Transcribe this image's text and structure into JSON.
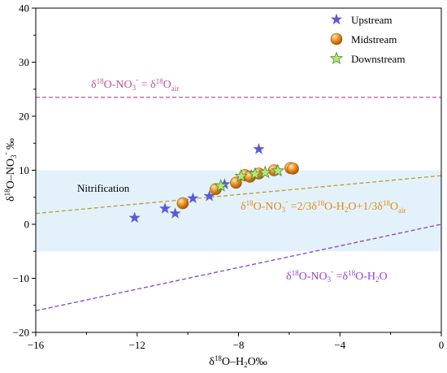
{
  "chart_data": {
    "type": "scatter",
    "xlim": [
      -16,
      0
    ],
    "ylim": [
      -20,
      40
    ],
    "x_ticks": [
      -16,
      -12,
      -8,
      -4,
      0
    ],
    "x_tick_labels": [
      "−16",
      "−12",
      "−8",
      "−4",
      "0"
    ],
    "y_ticks": [
      -20,
      -10,
      0,
      10,
      20,
      30,
      40
    ],
    "y_tick_labels": [
      "−20",
      "−10",
      "0",
      "10",
      "20",
      "30",
      "40"
    ],
    "xlabel": "δ¹⁸O–H₂O‰",
    "ylabel": "δ¹⁸O–NO₃⁻ ‰",
    "legend_position": "top-right",
    "nitrification_band": {
      "y_min": -5,
      "y_max": 10,
      "label": "Nitrification",
      "color": "#e3f2fa"
    },
    "reference_lines": [
      {
        "id": "air",
        "label": "δ18O-NO3- = δ18Oair",
        "color": "#c2509a",
        "y": 23.5
      },
      {
        "id": "two-thirds",
        "label": "δ18O-NO3- =2/3δ18O-H2O+1/3δ18Oair",
        "color": "#c09a30",
        "slope": 0.4375,
        "intercept": 9.0
      },
      {
        "id": "equal",
        "label": "δ18O-NO3- =δ18O-H2O",
        "color": "#8a3fd0",
        "slope": 1,
        "intercept": 0
      }
    ],
    "series": [
      {
        "name": "Upstream",
        "marker": "star",
        "color": "#5a5ad6",
        "points": [
          [
            -12.1,
            1.2
          ],
          [
            -10.9,
            2.9
          ],
          [
            -10.5,
            2.0
          ],
          [
            -9.8,
            4.8
          ],
          [
            -9.15,
            5.2
          ],
          [
            -8.55,
            7.4
          ],
          [
            -7.2,
            13.9
          ],
          [
            -7.5,
            9.1
          ]
        ]
      },
      {
        "name": "Midstream",
        "marker": "circle",
        "color": "#e98b1a",
        "points": [
          [
            -10.2,
            3.9
          ],
          [
            -8.9,
            6.5
          ],
          [
            -8.1,
            7.7
          ],
          [
            -7.75,
            9.1
          ],
          [
            -7.55,
            8.8
          ],
          [
            -7.2,
            9.4
          ],
          [
            -6.6,
            10.0
          ],
          [
            -5.95,
            10.4
          ],
          [
            -5.85,
            10.3
          ]
        ]
      },
      {
        "name": "Downstream",
        "marker": "star",
        "color": "#b4e870",
        "points": [
          [
            -8.7,
            7.1
          ],
          [
            -7.9,
            8.9
          ],
          [
            -7.35,
            9.3
          ],
          [
            -6.95,
            9.6
          ],
          [
            -6.45,
            9.9
          ]
        ]
      }
    ]
  }
}
